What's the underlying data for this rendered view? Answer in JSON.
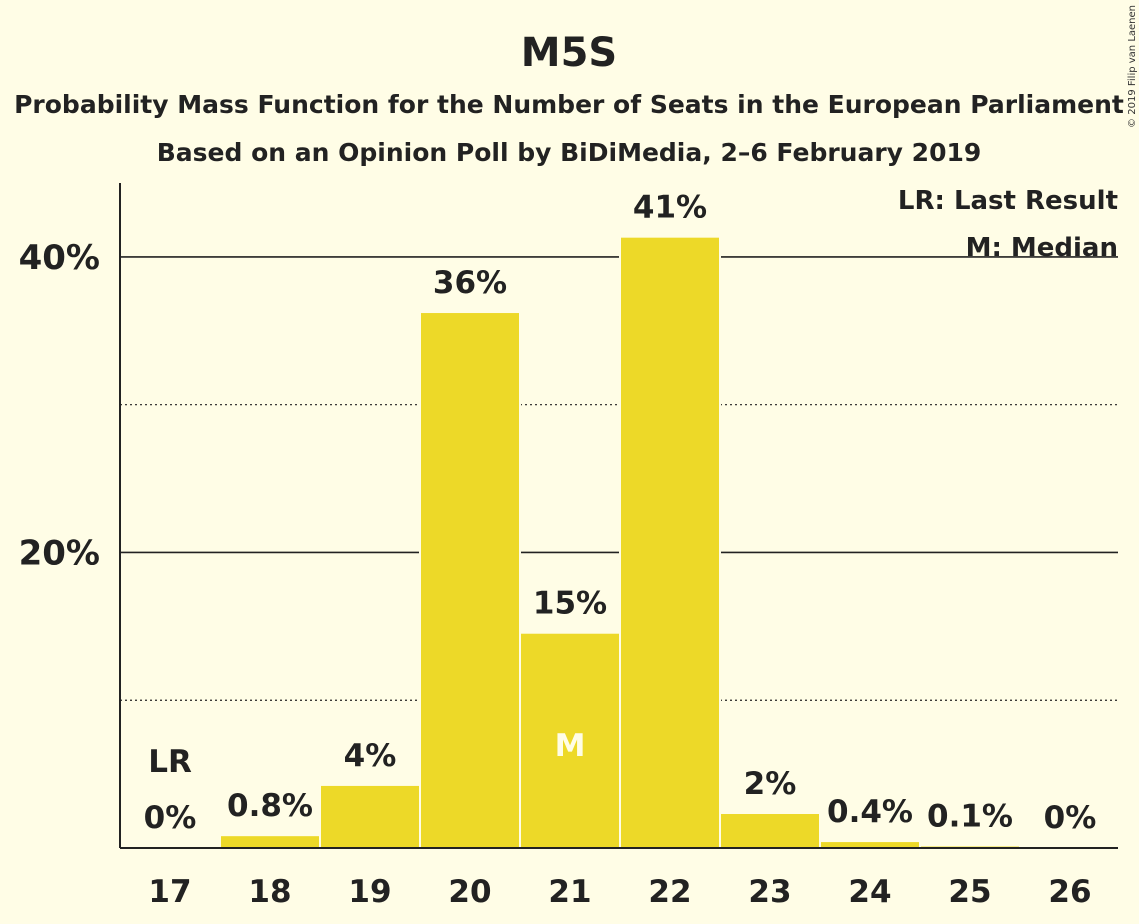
{
  "chart_data": {
    "type": "bar",
    "title": "M5S",
    "subtitle_lines": [
      "Probability Mass Function for the Number of Seats in the European Parliament",
      "Based on an Opinion Poll by BiDiMedia, 2–6 February 2019"
    ],
    "categories": [
      "17",
      "18",
      "19",
      "20",
      "21",
      "22",
      "23",
      "24",
      "25",
      "26"
    ],
    "values": [
      0,
      0.8,
      4.2,
      36.2,
      14.5,
      41.3,
      2.3,
      0.4,
      0.1,
      0
    ],
    "value_labels": [
      "0%",
      "0.8%",
      "4%",
      "36%",
      "15%",
      "41%",
      "2%",
      "0.4%",
      "0.1%",
      "0%"
    ],
    "ylim": [
      0,
      45
    ],
    "yticks": [
      20,
      40
    ],
    "ytick_labels": [
      "20%",
      "40%"
    ],
    "minor_gridlines": [
      10,
      30
    ],
    "grid": true,
    "last_result_category": "17",
    "median_category": "21",
    "markers": {
      "last_result": "LR",
      "median": "M"
    },
    "legend": {
      "placement": "top-right",
      "entries": [
        "LR: Last Result",
        "M: Median"
      ]
    },
    "colors": {
      "bar": "#EDD928",
      "background": "#FFFDE6",
      "text": "#222222",
      "median_marker": "#FFFDE6"
    }
  },
  "copyright": "© 2019 Filip van Laenen"
}
